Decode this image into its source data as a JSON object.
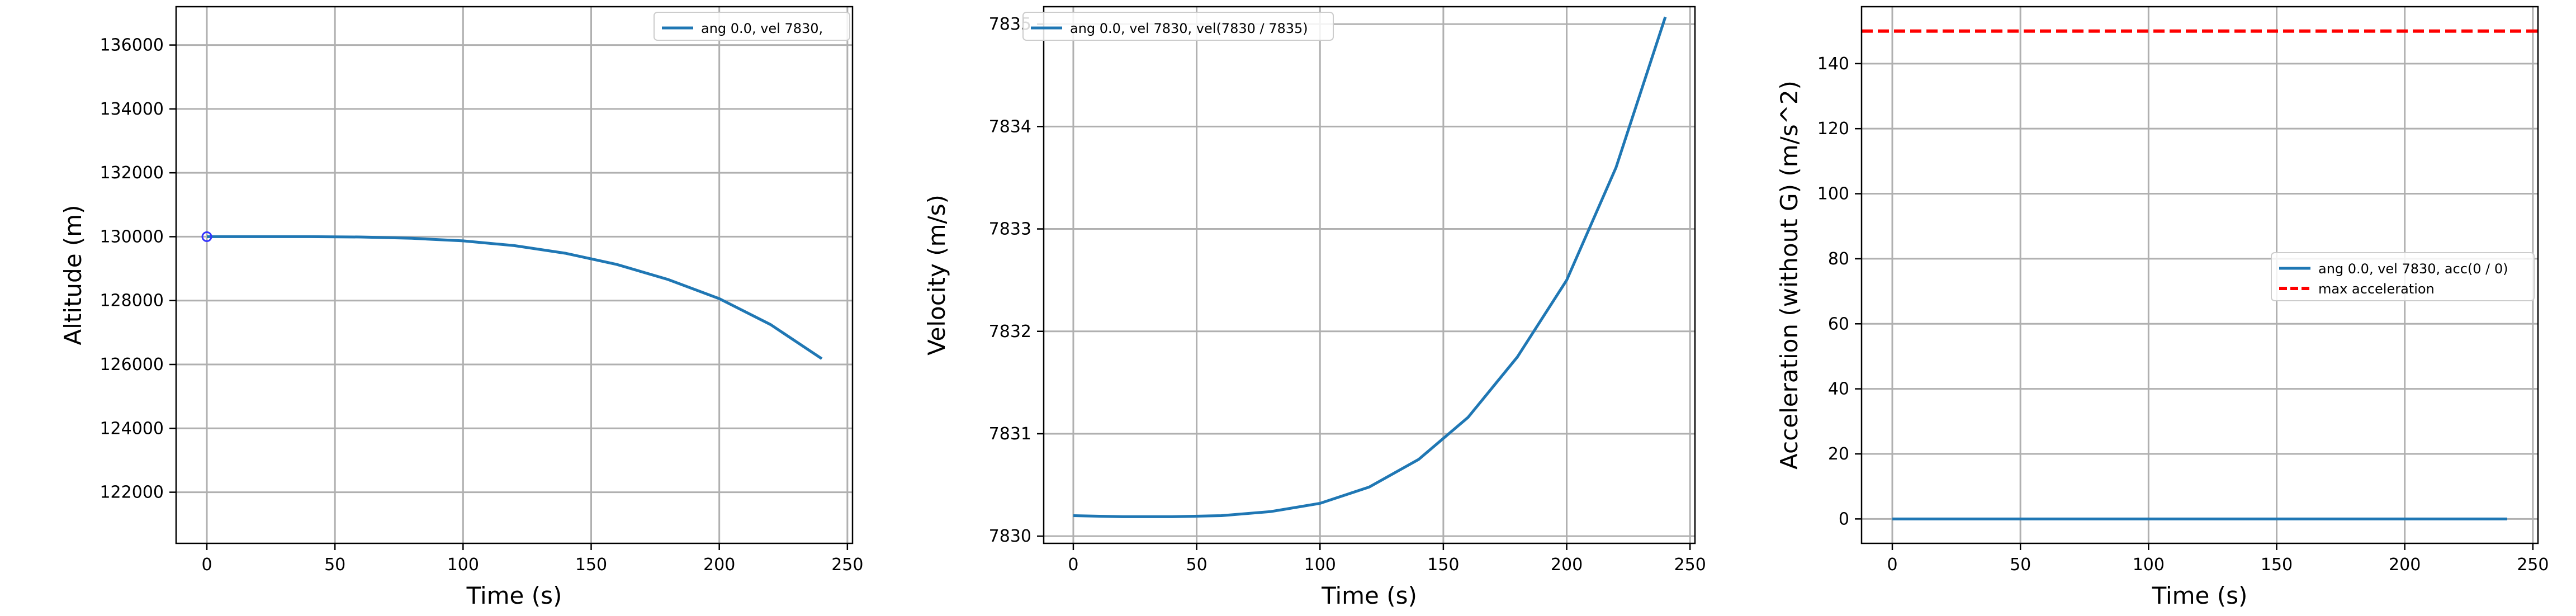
{
  "chart_data": [
    {
      "type": "line",
      "xlabel": "Time (s)",
      "ylabel": "Altitude (m)",
      "xlim": [
        -12,
        252
      ],
      "ylim": [
        120400,
        137200
      ],
      "xticks": [
        0,
        50,
        100,
        150,
        200,
        250
      ],
      "yticks": [
        122000,
        124000,
        126000,
        128000,
        130000,
        132000,
        134000,
        136000
      ],
      "grid": true,
      "legend_position": "top-right",
      "series": [
        {
          "name": "ang 0.0, vel 7830,",
          "color": "#1f77b4",
          "style": "solid",
          "x": [
            0,
            20,
            40,
            60,
            80,
            100,
            120,
            140,
            160,
            180,
            200,
            220,
            240
          ],
          "y": [
            130000,
            130000,
            130000,
            129990,
            129950,
            129870,
            129720,
            129480,
            129130,
            128660,
            128060,
            127250,
            126180
          ]
        }
      ],
      "markers": [
        {
          "x": 0,
          "y": 130000,
          "color": "#3333ff"
        }
      ]
    },
    {
      "type": "line",
      "xlabel": "Time (s)",
      "ylabel": "Velocity (m/s)",
      "xlim": [
        -12,
        252
      ],
      "ylim": [
        7829.93,
        7835.17
      ],
      "xticks": [
        0,
        50,
        100,
        150,
        200,
        250
      ],
      "yticks": [
        7830,
        7831,
        7832,
        7833,
        7834,
        7835
      ],
      "grid": true,
      "legend_position": "top-left",
      "series": [
        {
          "name": "ang 0.0, vel 7830,   vel(7830 / 7835)",
          "color": "#1f77b4",
          "style": "solid",
          "x": [
            0,
            20,
            40,
            60,
            80,
            100,
            120,
            140,
            160,
            180,
            200,
            220,
            240
          ],
          "y": [
            7830.2,
            7830.19,
            7830.19,
            7830.2,
            7830.24,
            7830.32,
            7830.48,
            7830.75,
            7831.16,
            7831.75,
            7832.5,
            7833.6,
            7835.07
          ]
        }
      ]
    },
    {
      "type": "line",
      "xlabel": "Time (s)",
      "ylabel": "Acceleration (without G) (m/s^2)",
      "xlim": [
        -12,
        252
      ],
      "ylim": [
        -7.5,
        157.5
      ],
      "xticks": [
        0,
        50,
        100,
        150,
        200,
        250
      ],
      "yticks": [
        0,
        20,
        40,
        60,
        80,
        100,
        120,
        140
      ],
      "grid": true,
      "legend_position": "center-right",
      "series": [
        {
          "name": "ang 0.0, vel 7830,   acc(0 / 0)",
          "color": "#1f77b4",
          "style": "solid",
          "x": [
            0,
            240
          ],
          "y": [
            0,
            0
          ]
        },
        {
          "name": "max acceleration",
          "color": "#ff0000",
          "style": "dashed",
          "x": [
            -12,
            252
          ],
          "y": [
            150,
            150
          ]
        }
      ]
    }
  ]
}
